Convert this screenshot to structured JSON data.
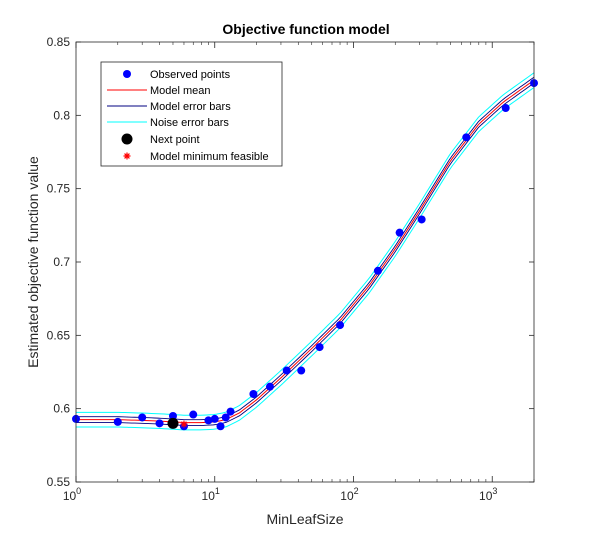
{
  "chart_data": {
    "type": "line",
    "title": "Objective function model",
    "xlabel": "MinLeafSize",
    "ylabel": "Estimated objective function value",
    "xscale": "log",
    "xlim": [
      1,
      2000
    ],
    "ylim": [
      0.55,
      0.85
    ],
    "x_ticks": [
      1,
      10,
      100,
      1000
    ],
    "x_tick_labels": [
      {
        "base": "10",
        "exp": "0"
      },
      {
        "base": "10",
        "exp": "1"
      },
      {
        "base": "10",
        "exp": "2"
      },
      {
        "base": "10",
        "exp": "3"
      }
    ],
    "y_ticks": [
      0.55,
      0.6,
      0.65,
      0.7,
      0.75,
      0.8,
      0.85
    ],
    "y_tick_labels": [
      "0.55",
      "0.6",
      "0.65",
      "0.7",
      "0.75",
      "0.8",
      "0.85"
    ],
    "grid": false,
    "legend_position": "top-left",
    "legend": [
      {
        "label": "Observed points",
        "kind": "marker-dot",
        "color": "#0000ff"
      },
      {
        "label": "Model mean",
        "kind": "line",
        "color": "#ff0000"
      },
      {
        "label": "Model error bars",
        "kind": "line",
        "color": "#000080"
      },
      {
        "label": "Noise error bars",
        "kind": "line",
        "color": "#00ffff"
      },
      {
        "label": "Next point",
        "kind": "marker-dot-large",
        "color": "#000000"
      },
      {
        "label": "Model minimum feasible",
        "kind": "marker-star",
        "color": "#ff0000"
      }
    ],
    "observed_points": {
      "x": [
        1,
        2,
        3,
        4,
        5,
        5,
        6,
        7,
        9,
        10,
        11,
        12,
        13,
        19,
        25,
        33,
        42,
        57,
        80,
        150,
        215,
        310,
        650,
        1250,
        2000
      ],
      "y": [
        0.593,
        0.591,
        0.594,
        0.59,
        0.595,
        0.59,
        0.588,
        0.596,
        0.592,
        0.593,
        0.588,
        0.594,
        0.598,
        0.61,
        0.615,
        0.626,
        0.626,
        0.642,
        0.657,
        0.694,
        0.72,
        0.729,
        0.785,
        0.805,
        0.822
      ]
    },
    "model_mean": {
      "x": [
        1,
        2,
        3,
        4,
        5,
        6,
        8,
        10,
        12,
        15,
        20,
        30,
        50,
        80,
        130,
        200,
        300,
        500,
        800,
        1200,
        2000
      ],
      "y": [
        0.5925,
        0.5925,
        0.592,
        0.5915,
        0.591,
        0.5905,
        0.5905,
        0.591,
        0.5925,
        0.597,
        0.606,
        0.621,
        0.641,
        0.66,
        0.684,
        0.709,
        0.735,
        0.769,
        0.794,
        0.809,
        0.824
      ]
    },
    "model_error_half_width": 0.002,
    "noise_error_half_width": 0.005,
    "next_point": {
      "x": 5,
      "y": 0.59
    },
    "model_minimum_feasible": {
      "x": 6,
      "y": 0.5895
    },
    "colors": {
      "observed": "#0000ff",
      "mean": "#ff0000",
      "model_error": "#000080",
      "noise_error": "#00ffff",
      "next": "#000000",
      "minimum": "#ff0000",
      "axis": "#262626"
    }
  }
}
